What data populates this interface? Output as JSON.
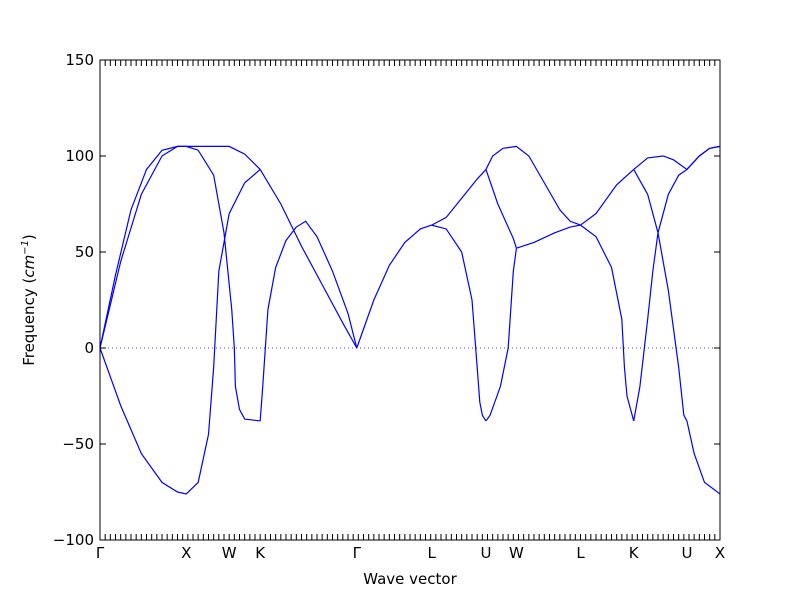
{
  "chart_data": {
    "type": "line",
    "title": "",
    "xlabel": "Wave vector",
    "ylabel_text": "Frequency (",
    "ylabel_unit": "cm",
    "ylabel_exp": "−1",
    "ylabel_close": ")",
    "ylim": [
      -100,
      150
    ],
    "xlim": [
      0,
      12
    ],
    "yticks": [
      {
        "value": 150,
        "label": "150"
      },
      {
        "value": 100,
        "label": "100"
      },
      {
        "value": 50,
        "label": "50"
      },
      {
        "value": 0,
        "label": "0"
      },
      {
        "value": -50,
        "label": "−50"
      },
      {
        "value": -100,
        "label": "−100"
      }
    ],
    "high_symmetry_points": [
      {
        "label": "Γ",
        "x": 0
      },
      {
        "label": "X",
        "x": 1.67
      },
      {
        "label": "W",
        "x": 2.5
      },
      {
        "label": "K",
        "x": 3.1
      },
      {
        "label": "Γ",
        "x": 4.97
      },
      {
        "label": "L",
        "x": 6.42
      },
      {
        "label": "U",
        "x": 7.47
      },
      {
        "label": "W",
        "x": 8.06
      },
      {
        "label": "L",
        "x": 9.3
      },
      {
        "label": "K",
        "x": 10.33
      },
      {
        "label": "U",
        "x": 11.36
      },
      {
        "label": "X",
        "x": 12.0
      }
    ],
    "grid": false,
    "zero_line": "dotted",
    "series_color": "#0000ff",
    "series": [
      {
        "x": [
          0,
          0.3,
          0.6,
          0.9,
          1.2,
          1.5,
          1.67,
          2.0,
          2.5,
          2.8,
          3.1
        ],
        "values": [
          0,
          38,
          72,
          93,
          103,
          105,
          105,
          105,
          105,
          101,
          93
        ]
      },
      {
        "x": [
          3.1,
          3.5,
          3.9,
          4.3,
          4.7,
          4.97
        ],
        "values": [
          93,
          75,
          53,
          33,
          13,
          0
        ]
      },
      {
        "x": [
          0,
          0.4,
          0.8,
          1.2,
          1.5,
          1.67,
          1.9,
          2.1,
          2.2,
          2.25,
          2.3,
          2.5,
          2.8,
          3.1
        ],
        "values": [
          0,
          -30,
          -55,
          -70,
          -75,
          -76,
          -70,
          -45,
          -10,
          15,
          40,
          70,
          86,
          93
        ]
      },
      {
        "x": [
          0,
          0.4,
          0.8,
          1.2,
          1.5,
          1.67,
          1.9,
          2.2,
          2.4,
          2.55,
          2.6,
          2.62,
          2.7,
          2.8,
          3.1
        ],
        "values": [
          0,
          45,
          80,
          100,
          105,
          105,
          103,
          90,
          60,
          20,
          0,
          -20,
          -32,
          -37,
          -38
        ]
      },
      {
        "x": [
          3.1,
          3.15,
          3.25,
          3.4,
          3.6,
          3.8,
          3.98,
          4.2,
          4.5,
          4.8,
          4.97
        ],
        "values": [
          -38,
          -20,
          20,
          42,
          56,
          63,
          66,
          58,
          40,
          18,
          0
        ]
      },
      {
        "x": [
          4.97,
          5.3,
          5.6,
          5.9,
          6.2,
          6.42,
          6.7,
          7.0,
          7.3,
          7.47
        ],
        "values": [
          0,
          25,
          43,
          55,
          62,
          64,
          68,
          78,
          88,
          93
        ]
      },
      {
        "x": [
          6.42,
          6.7,
          7.0,
          7.2,
          7.3,
          7.35,
          7.4,
          7.47
        ],
        "values": [
          64,
          62,
          50,
          25,
          -10,
          -28,
          -35,
          -38
        ]
      },
      {
        "x": [
          7.47,
          7.6,
          7.8,
          8.06,
          8.3,
          8.6,
          8.9,
          9.1,
          9.3
        ],
        "values": [
          93,
          100,
          104,
          105,
          100,
          86,
          72,
          66,
          64
        ]
      },
      {
        "x": [
          7.47,
          7.7,
          8.0,
          8.06
        ],
        "values": [
          93,
          75,
          57,
          52
        ]
      },
      {
        "x": [
          7.47,
          7.55,
          7.75,
          7.9,
          7.95,
          8.0,
          8.06
        ],
        "values": [
          -38,
          -35,
          -20,
          0,
          20,
          40,
          52
        ]
      },
      {
        "x": [
          8.06,
          8.4,
          8.8,
          9.1,
          9.3,
          9.6,
          10.0,
          10.33
        ],
        "values": [
          52,
          55,
          60,
          63,
          64,
          70,
          85,
          93
        ]
      },
      {
        "x": [
          9.3,
          9.6,
          9.9,
          10.1,
          10.15,
          10.2,
          10.33
        ],
        "values": [
          64,
          58,
          42,
          15,
          -10,
          -25,
          -38
        ]
      },
      {
        "x": [
          10.33,
          10.6,
          10.9,
          11.1,
          11.36,
          11.6,
          11.8,
          12.0
        ],
        "values": [
          93,
          99,
          100,
          98,
          93,
          100,
          104,
          105
        ]
      },
      {
        "x": [
          10.33,
          10.45,
          10.6,
          10.7,
          10.8,
          11.0,
          11.2,
          11.36,
          11.6,
          11.8,
          12.0
        ],
        "values": [
          -38,
          -20,
          15,
          40,
          60,
          80,
          90,
          93,
          100,
          104,
          105
        ]
      },
      {
        "x": [
          10.33,
          10.6,
          10.8,
          11.0,
          11.1,
          11.15,
          11.2,
          11.3,
          11.36,
          11.5,
          11.7,
          12.0
        ],
        "values": [
          93,
          80,
          60,
          30,
          10,
          0,
          -10,
          -35,
          -38,
          -55,
          -70,
          -76
        ]
      }
    ]
  }
}
